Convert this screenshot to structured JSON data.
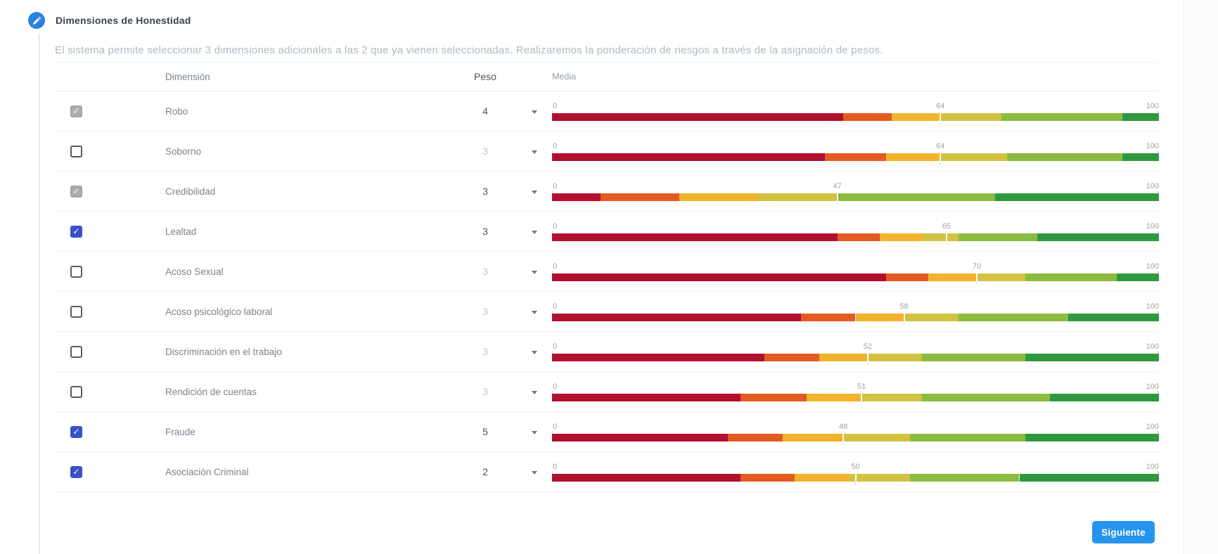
{
  "header": {
    "title": "Dimensiones de Honestidad",
    "icon": "pencil-icon"
  },
  "description": "El sistema permite seleccionar 3 dimensiones adicionales a las 2 que ya vienen seleccionadas. Realizaremos la ponderación de riesgos a través de la asignación de pesos.",
  "table": {
    "columns": {
      "dimension": "Dimensión",
      "peso": "Peso",
      "media": "Media"
    },
    "scale": {
      "min": "0",
      "max": "100"
    },
    "rows": [
      {
        "name": "Robo",
        "checked": true,
        "disabled": true,
        "peso": "4",
        "media": 64,
        "stops": [
          48,
          56,
          64,
          74,
          94
        ]
      },
      {
        "name": "Soborno",
        "checked": false,
        "disabled": false,
        "peso": "3",
        "media": 64,
        "stops": [
          45,
          55,
          64,
          75,
          94
        ]
      },
      {
        "name": "Credibilidad",
        "checked": true,
        "disabled": true,
        "peso": "3",
        "media": 47,
        "stops": [
          8,
          21,
          34,
          47,
          73
        ]
      },
      {
        "name": "Lealtad",
        "checked": true,
        "disabled": false,
        "peso": "3",
        "media": 65,
        "stops": [
          47,
          54,
          61,
          67,
          80
        ]
      },
      {
        "name": "Acoso Sexual",
        "checked": false,
        "disabled": false,
        "peso": "3",
        "media": 70,
        "stops": [
          55,
          62,
          70,
          78,
          93
        ]
      },
      {
        "name": "Acoso psicológico laboral",
        "checked": false,
        "disabled": false,
        "peso": "3",
        "media": 58,
        "stops": [
          41,
          50,
          58,
          67,
          85
        ]
      },
      {
        "name": "Discriminación en el trabajo",
        "checked": false,
        "disabled": false,
        "peso": "3",
        "media": 52,
        "stops": [
          35,
          44,
          52,
          61,
          78
        ]
      },
      {
        "name": "Rendición de cuentas",
        "checked": false,
        "disabled": false,
        "peso": "3",
        "media": 51,
        "stops": [
          31,
          42,
          51,
          61,
          82
        ]
      },
      {
        "name": "Fraude",
        "checked": true,
        "disabled": false,
        "peso": "5",
        "media": 48,
        "stops": [
          29,
          38,
          48,
          59,
          78
        ]
      },
      {
        "name": "Asociación Criminal",
        "checked": true,
        "disabled": false,
        "peso": "2",
        "media": 50,
        "stops": [
          31,
          40,
          49,
          59,
          77
        ]
      }
    ]
  },
  "colors": {
    "scale": [
      "#b1102f",
      "#e35b22",
      "#f1b32b",
      "#d2c242",
      "#8abc3f",
      "#30993f"
    ],
    "accent_blue": "#2b80e4",
    "checkbox_checked": "#3950c8",
    "checkbox_disabled": "#adadad",
    "button_blue": "#2694ee"
  },
  "footer": {
    "next_label": "Siguiente"
  }
}
